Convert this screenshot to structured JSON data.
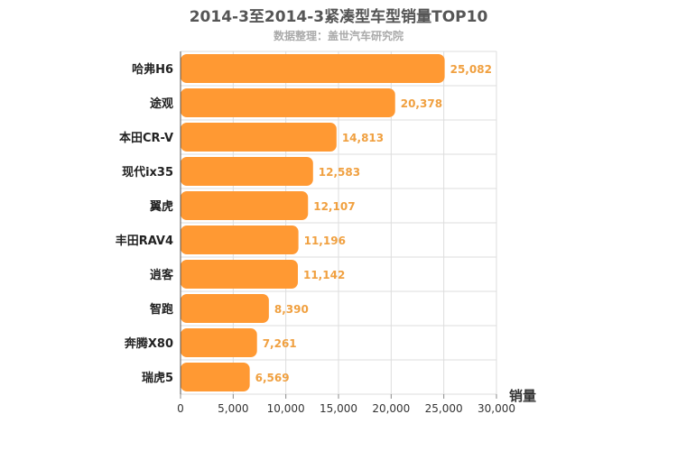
{
  "chart_data": {
    "type": "bar",
    "orientation": "horizontal",
    "title": "2014-3至2014-3紧凑型车型销量TOP10",
    "subtitle": "数据整理：盖世汽车研究院",
    "categories": [
      "哈弗H6",
      "途观",
      "本田CR-V",
      "现代ix35",
      "翼虎",
      "丰田RAV4",
      "逍客",
      "智跑",
      "奔腾X80",
      "瑞虎5"
    ],
    "values": [
      25082,
      20378,
      14813,
      12583,
      12107,
      11196,
      11142,
      8390,
      7261,
      6569
    ],
    "value_labels": [
      "25,082",
      "20,378",
      "14,813",
      "12,583",
      "12,107",
      "11,196",
      "11,142",
      "8,390",
      "7,261",
      "6,569"
    ],
    "xlabel": "销量",
    "xlim": [
      0,
      30000
    ],
    "xticks": [
      0,
      5000,
      10000,
      15000,
      20000,
      25000,
      30000
    ],
    "xtick_labels": [
      "0",
      "5,000",
      "10,000",
      "15,000",
      "20,000",
      "25,000",
      "30,000"
    ],
    "grid": true,
    "legend": "none",
    "bar_color": "#FF9933",
    "label_color": "#F0A040"
  }
}
